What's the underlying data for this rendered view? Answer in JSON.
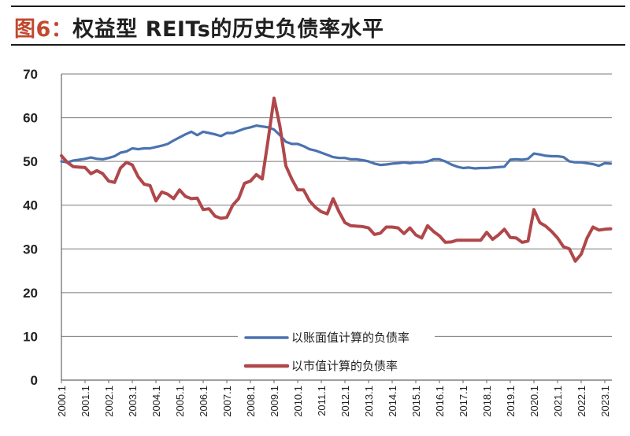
{
  "header": {
    "figure_label": "图6：",
    "title_text": "权益型 REITs的历史负债率水平"
  },
  "chart_data": {
    "type": "line",
    "ylim": [
      0,
      70
    ],
    "yticks": [
      0,
      10,
      20,
      30,
      40,
      50,
      60,
      70
    ],
    "xlim": [
      2000.0,
      2023.3
    ],
    "xtick_labels": [
      "2000.1",
      "2001.1",
      "2002.1",
      "2003.1",
      "2004.1",
      "2005.1",
      "2006.1",
      "2007.1",
      "2008.1",
      "2009.1",
      "2010.1",
      "2011.1",
      "2012.1",
      "2013.1",
      "2014.1",
      "2015.1",
      "2016.1",
      "2017.1",
      "2018.1",
      "2019.1",
      "2020.1",
      "2021.1",
      "2022.1",
      "2023.1"
    ],
    "grid": "horizontal",
    "legend_position": "bottom-center",
    "series": [
      {
        "name": "以账面值计算的负债率",
        "color": "#4a72b0",
        "points": [
          [
            2000.0,
            50
          ],
          [
            2000.25,
            49.8
          ],
          [
            2000.5,
            50.2
          ],
          [
            2000.75,
            50.4
          ],
          [
            2001.0,
            50.6
          ],
          [
            2001.25,
            50.9
          ],
          [
            2001.5,
            50.6
          ],
          [
            2001.75,
            50.5
          ],
          [
            2002.0,
            50.8
          ],
          [
            2002.25,
            51.2
          ],
          [
            2002.5,
            52
          ],
          [
            2002.75,
            52.3
          ],
          [
            2003.0,
            53
          ],
          [
            2003.25,
            52.8
          ],
          [
            2003.5,
            53
          ],
          [
            2003.75,
            53
          ],
          [
            2004.0,
            53.3
          ],
          [
            2004.25,
            53.6
          ],
          [
            2004.5,
            54
          ],
          [
            2004.75,
            54.8
          ],
          [
            2005.0,
            55.5
          ],
          [
            2005.25,
            56.2
          ],
          [
            2005.5,
            56.8
          ],
          [
            2005.75,
            56
          ],
          [
            2006.0,
            56.8
          ],
          [
            2006.25,
            56.5
          ],
          [
            2006.5,
            56.2
          ],
          [
            2006.75,
            55.8
          ],
          [
            2007.0,
            56.5
          ],
          [
            2007.25,
            56.5
          ],
          [
            2007.5,
            57
          ],
          [
            2007.75,
            57.5
          ],
          [
            2008.0,
            57.8
          ],
          [
            2008.25,
            58.2
          ],
          [
            2008.5,
            58
          ],
          [
            2008.75,
            57.8
          ],
          [
            2009.0,
            57.3
          ],
          [
            2009.25,
            56
          ],
          [
            2009.5,
            54.5
          ],
          [
            2009.75,
            54
          ],
          [
            2010.0,
            54
          ],
          [
            2010.25,
            53.5
          ],
          [
            2010.5,
            52.8
          ],
          [
            2010.75,
            52.5
          ],
          [
            2011.0,
            52
          ],
          [
            2011.25,
            51.5
          ],
          [
            2011.5,
            51
          ],
          [
            2011.75,
            50.8
          ],
          [
            2012.0,
            50.8
          ],
          [
            2012.25,
            50.5
          ],
          [
            2012.5,
            50.5
          ],
          [
            2012.75,
            50.3
          ],
          [
            2013.0,
            50
          ],
          [
            2013.25,
            49.5
          ],
          [
            2013.5,
            49.2
          ],
          [
            2013.75,
            49.3
          ],
          [
            2014.0,
            49.5
          ],
          [
            2014.25,
            49.6
          ],
          [
            2014.5,
            49.8
          ],
          [
            2014.75,
            49.6
          ],
          [
            2015.0,
            49.8
          ],
          [
            2015.25,
            49.8
          ],
          [
            2015.5,
            50
          ],
          [
            2015.75,
            50.5
          ],
          [
            2016.0,
            50.5
          ],
          [
            2016.25,
            50
          ],
          [
            2016.5,
            49.3
          ],
          [
            2016.75,
            48.8
          ],
          [
            2017.0,
            48.5
          ],
          [
            2017.25,
            48.6
          ],
          [
            2017.5,
            48.4
          ],
          [
            2017.75,
            48.5
          ],
          [
            2018.0,
            48.5
          ],
          [
            2018.25,
            48.6
          ],
          [
            2018.5,
            48.7
          ],
          [
            2018.75,
            48.8
          ],
          [
            2019.0,
            50.4
          ],
          [
            2019.25,
            50.5
          ],
          [
            2019.5,
            50.4
          ],
          [
            2019.75,
            50.6
          ],
          [
            2020.0,
            51.8
          ],
          [
            2020.25,
            51.6
          ],
          [
            2020.5,
            51.3
          ],
          [
            2020.75,
            51.2
          ],
          [
            2021.0,
            51.2
          ],
          [
            2021.25,
            51
          ],
          [
            2021.5,
            50
          ],
          [
            2021.75,
            49.8
          ],
          [
            2022.0,
            49.8
          ],
          [
            2022.25,
            49.6
          ],
          [
            2022.5,
            49.4
          ],
          [
            2022.75,
            49
          ],
          [
            2023.0,
            49.6
          ],
          [
            2023.25,
            49.5
          ]
        ]
      },
      {
        "name": "以市值计算的负债率",
        "color": "#b0474a",
        "points": [
          [
            2000.0,
            51.3
          ],
          [
            2000.25,
            49.8
          ],
          [
            2000.5,
            48.8
          ],
          [
            2000.75,
            48.7
          ],
          [
            2001.0,
            48.6
          ],
          [
            2001.25,
            47.2
          ],
          [
            2001.5,
            47.9
          ],
          [
            2001.75,
            47.2
          ],
          [
            2002.0,
            45.5
          ],
          [
            2002.25,
            45.2
          ],
          [
            2002.5,
            48.5
          ],
          [
            2002.75,
            49.8
          ],
          [
            2003.0,
            49.2
          ],
          [
            2003.25,
            46.5
          ],
          [
            2003.5,
            44.8
          ],
          [
            2003.75,
            44.5
          ],
          [
            2004.0,
            41
          ],
          [
            2004.25,
            43
          ],
          [
            2004.5,
            42.5
          ],
          [
            2004.75,
            41.5
          ],
          [
            2005.0,
            43.5
          ],
          [
            2005.25,
            42
          ],
          [
            2005.5,
            41.5
          ],
          [
            2005.75,
            41.6
          ],
          [
            2006.0,
            39
          ],
          [
            2006.25,
            39.2
          ],
          [
            2006.5,
            37.5
          ],
          [
            2006.75,
            37
          ],
          [
            2007.0,
            37.2
          ],
          [
            2007.25,
            40
          ],
          [
            2007.5,
            41.5
          ],
          [
            2007.75,
            45
          ],
          [
            2008.0,
            45.5
          ],
          [
            2008.25,
            47
          ],
          [
            2008.5,
            46
          ],
          [
            2008.75,
            55
          ],
          [
            2009.0,
            64.5
          ],
          [
            2009.25,
            58
          ],
          [
            2009.5,
            49
          ],
          [
            2009.75,
            46
          ],
          [
            2010.0,
            43.5
          ],
          [
            2010.25,
            43.5
          ],
          [
            2010.5,
            41
          ],
          [
            2010.75,
            39.5
          ],
          [
            2011.0,
            38.5
          ],
          [
            2011.25,
            38
          ],
          [
            2011.5,
            41.5
          ],
          [
            2011.75,
            38.5
          ],
          [
            2012.0,
            36
          ],
          [
            2012.25,
            35.3
          ],
          [
            2012.5,
            35.2
          ],
          [
            2012.75,
            35.1
          ],
          [
            2013.0,
            34.8
          ],
          [
            2013.25,
            33.3
          ],
          [
            2013.5,
            33.6
          ],
          [
            2013.75,
            35
          ],
          [
            2014.0,
            35
          ],
          [
            2014.25,
            34.8
          ],
          [
            2014.5,
            33.5
          ],
          [
            2014.75,
            34.8
          ],
          [
            2015.0,
            33.2
          ],
          [
            2015.25,
            32.5
          ],
          [
            2015.5,
            35.3
          ],
          [
            2015.75,
            34
          ],
          [
            2016.0,
            33
          ],
          [
            2016.25,
            31.5
          ],
          [
            2016.5,
            31.6
          ],
          [
            2016.75,
            32
          ],
          [
            2017.0,
            32
          ],
          [
            2017.25,
            32
          ],
          [
            2017.5,
            32
          ],
          [
            2017.75,
            32
          ],
          [
            2018.0,
            33.8
          ],
          [
            2018.25,
            32.2
          ],
          [
            2018.5,
            33.2
          ],
          [
            2018.75,
            34.5
          ],
          [
            2019.0,
            32.6
          ],
          [
            2019.25,
            32.5
          ],
          [
            2019.5,
            31.5
          ],
          [
            2019.75,
            31.8
          ],
          [
            2020.0,
            39
          ],
          [
            2020.25,
            36
          ],
          [
            2020.5,
            35.2
          ],
          [
            2020.75,
            34
          ],
          [
            2021.0,
            32.5
          ],
          [
            2021.25,
            30.5
          ],
          [
            2021.5,
            30
          ],
          [
            2021.75,
            27.2
          ],
          [
            2022.0,
            28.8
          ],
          [
            2022.25,
            32.5
          ],
          [
            2022.5,
            35
          ],
          [
            2022.75,
            34.3
          ],
          [
            2023.0,
            34.5
          ],
          [
            2023.25,
            34.6
          ]
        ]
      }
    ]
  }
}
